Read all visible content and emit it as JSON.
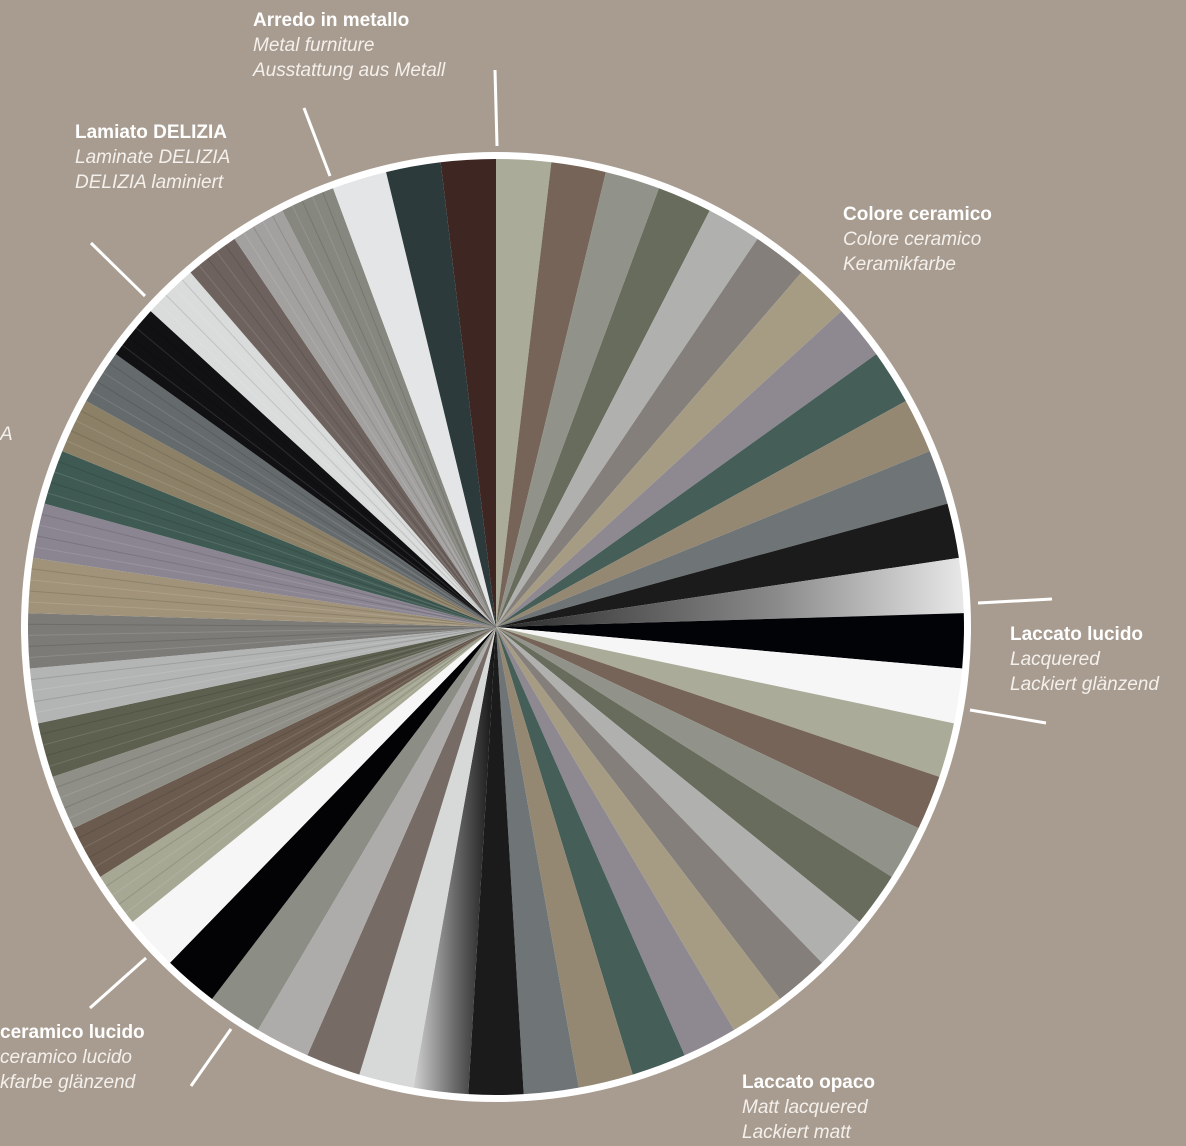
{
  "groups": [
    {
      "id": "arredo",
      "title": "Arredo in metallo",
      "en": "Metal furniture",
      "de": "Ausstattung aus Metall"
    },
    {
      "id": "lamiato",
      "title": "Lamiato DELIZIA",
      "en": "Laminate DELIZIA",
      "de": "DELIZIA laminiert"
    },
    {
      "id": "ceramico",
      "title": "Colore ceramico",
      "en": "Colore ceramico",
      "de": "Keramikfarbe"
    },
    {
      "id": "lucido",
      "title": "Laccato lucido",
      "en": "Lacquered",
      "de": "Lackiert glänzend"
    },
    {
      "id": "opaco",
      "title": "Laccato opaco",
      "en": "Matt lacquered",
      "de": "Lackiert matt"
    },
    {
      "id": "ceramico_lucido",
      "title": "ceramico lucido",
      "en": "ceramico lucido",
      "de": "kfarbe glänzend"
    },
    {
      "id": "partial_left",
      "title": "",
      "en": "A",
      "de": ""
    }
  ],
  "wheel": {
    "rim_color": "#ffffff",
    "segments": [
      {
        "color": "#aaab98",
        "wood": false
      },
      {
        "color": "#756457",
        "wood": false
      },
      {
        "color": "#91938a",
        "wood": false
      },
      {
        "color": "#686c5c",
        "wood": false
      },
      {
        "color": "#b0b1af",
        "wood": false
      },
      {
        "color": "#857f7c",
        "wood": false
      },
      {
        "color": "#a69c84",
        "wood": false
      },
      {
        "color": "#8e8890",
        "wood": false
      },
      {
        "color": "#465e58",
        "wood": false
      },
      {
        "color": "#948872",
        "wood": false
      },
      {
        "color": "#6f7476",
        "wood": false
      },
      {
        "color": "#1b1b1b",
        "wood": false
      },
      {
        "color": "gradient-dark",
        "wood": false
      },
      {
        "color": "#020307",
        "wood": false
      },
      {
        "color": "#f6f6f6",
        "wood": false
      },
      {
        "color": "#aaab98",
        "wood": false
      },
      {
        "color": "#756457",
        "wood": false
      },
      {
        "color": "#91938a",
        "wood": false
      },
      {
        "color": "#686c5c",
        "wood": false
      },
      {
        "color": "#b0b1af",
        "wood": false
      },
      {
        "color": "#857f7c",
        "wood": false
      },
      {
        "color": "#a69c84",
        "wood": false
      },
      {
        "color": "#8e8890",
        "wood": false
      },
      {
        "color": "#465e58",
        "wood": false
      },
      {
        "color": "#948872",
        "wood": false
      },
      {
        "color": "#6f7476",
        "wood": false
      },
      {
        "color": "#1b1b1b",
        "wood": false
      },
      {
        "color": "gradient-light",
        "wood": false
      },
      {
        "color": "#d7d9d8",
        "wood": false
      },
      {
        "color": "#766b65",
        "wood": false
      },
      {
        "color": "#aeacaa",
        "wood": false
      },
      {
        "color": "#8c8e86",
        "wood": false
      },
      {
        "color": "#030305",
        "wood": false
      },
      {
        "color": "#f6f6f6",
        "wood": false
      },
      {
        "color": "#a6a894",
        "wood": true
      },
      {
        "color": "#6a5b4e",
        "wood": true
      },
      {
        "color": "#8f8f88",
        "wood": true
      },
      {
        "color": "#5d604f",
        "wood": true
      },
      {
        "color": "#b3b5b5",
        "wood": true
      },
      {
        "color": "#7c7b78",
        "wood": true
      },
      {
        "color": "#a09379",
        "wood": true
      },
      {
        "color": "#8a8591",
        "wood": true
      },
      {
        "color": "#3f5a52",
        "wood": true
      },
      {
        "color": "#8c8067",
        "wood": true
      },
      {
        "color": "#656a6d",
        "wood": true
      },
      {
        "color": "#111113",
        "wood": true
      },
      {
        "color": "#d9dcdb",
        "wood": true
      },
      {
        "color": "#6d625e",
        "wood": true
      },
      {
        "color": "#a3a19f",
        "wood": true
      },
      {
        "color": "#86877f",
        "wood": true
      },
      {
        "color": "#e4e5e6",
        "wood": false
      },
      {
        "color": "#2c3a3b",
        "wood": false
      },
      {
        "color": "#3e2723",
        "wood": false
      }
    ]
  }
}
